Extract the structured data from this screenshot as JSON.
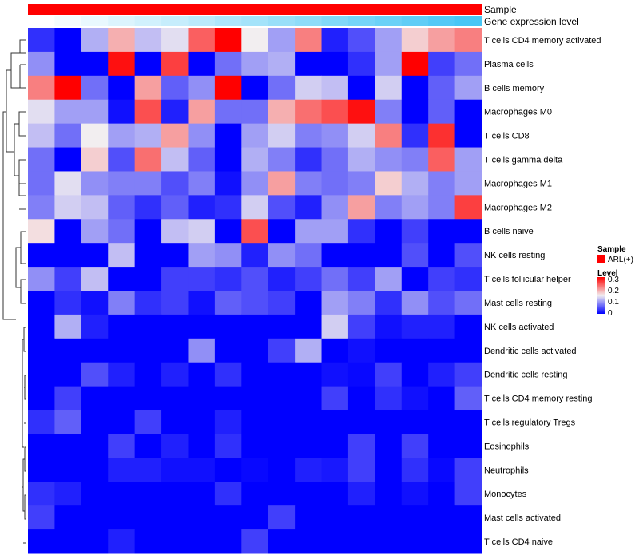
{
  "chart_data": {
    "type": "heatmap",
    "title": "",
    "annotation_rows": [
      {
        "label": "Sample",
        "values": [
          "ARL(+)",
          "ARL(+)",
          "ARL(+)",
          "ARL(+)",
          "ARL(+)",
          "ARL(+)",
          "ARL(+)",
          "ARL(+)",
          "ARL(+)",
          "ARL(+)",
          "ARL(+)",
          "ARL(+)",
          "ARL(+)",
          "ARL(+)",
          "ARL(+)",
          "ARL(+)",
          "ARL(+)"
        ]
      },
      {
        "label": "Gene expression level",
        "values": [
          0,
          0.06,
          0.12,
          0.19,
          0.25,
          0.31,
          0.37,
          0.44,
          0.5,
          0.56,
          0.62,
          0.69,
          0.75,
          0.81,
          0.87,
          0.94,
          1
        ]
      }
    ],
    "rows": [
      "T cells CD4 memory activated",
      "Plasma cells",
      "B cells memory",
      "Macrophages M0",
      "T cells CD8",
      "T cells gamma delta",
      "Macrophages M1",
      "Macrophages M2",
      "B cells naive",
      "NK cells resting",
      "T cells follicular helper",
      "Mast cells resting",
      "NK cells activated",
      "Dendritic cells activated",
      "Dendritic cells resting",
      "T cells CD4 memory resting",
      "T cells regulatory  Tregs",
      "Eosinophils",
      "Neutrophils",
      "Monocytes",
      "Mast cells activated",
      "T cells CD4 naive"
    ],
    "values": [
      [
        0.03,
        0,
        0.11,
        0.19,
        0.12,
        0.14,
        0.24,
        0.3,
        0.15,
        0.1,
        0.22,
        0.02,
        0.05,
        0.1,
        0.17,
        0.2,
        0.22
      ],
      [
        0.09,
        0,
        0,
        0.29,
        0,
        0.26,
        0,
        0.07,
        0.1,
        0.11,
        0,
        0,
        0.03,
        0.1,
        0.3,
        0.04,
        0.07
      ],
      [
        0.22,
        0.3,
        0.07,
        0,
        0.2,
        0.06,
        0.09,
        0.3,
        0,
        0.07,
        0.13,
        0.12,
        0,
        0.13,
        0,
        0.06,
        0.1
      ],
      [
        0.14,
        0.1,
        0.1,
        0.01,
        0.25,
        0.02,
        0.2,
        0.07,
        0.07,
        0.19,
        0.23,
        0.25,
        0.29,
        0.08,
        0,
        0.06,
        0
      ],
      [
        0.12,
        0.07,
        0.15,
        0.1,
        0.11,
        0.2,
        0.09,
        0,
        0.1,
        0.13,
        0.08,
        0.09,
        0.13,
        0.22,
        0.03,
        0.27,
        0
      ],
      [
        0.07,
        0,
        0.17,
        0.05,
        0.23,
        0.12,
        0.06,
        0,
        0.11,
        0.08,
        0.03,
        0.07,
        0.11,
        0.09,
        0.08,
        0.24,
        0.1
      ],
      [
        0.07,
        0.14,
        0.09,
        0.08,
        0.08,
        0.05,
        0.08,
        0.01,
        0.09,
        0.2,
        0.08,
        0.07,
        0.08,
        0.17,
        0.11,
        0.08,
        0.1
      ],
      [
        0.08,
        0.13,
        0.12,
        0.06,
        0.03,
        0.06,
        0.02,
        0.03,
        0.13,
        0.05,
        0.02,
        0.09,
        0.2,
        0.08,
        0.1,
        0.08,
        0.26
      ],
      [
        0.16,
        0,
        0.1,
        0.07,
        0,
        0.12,
        0.13,
        0,
        0.25,
        0,
        0.1,
        0.1,
        0.03,
        0,
        0.04,
        0,
        0
      ],
      [
        0,
        0,
        0,
        0.12,
        0,
        0,
        0.1,
        0.09,
        0.02,
        0.09,
        0.07,
        0,
        0,
        0,
        0.05,
        0,
        0.05
      ],
      [
        0.09,
        0.04,
        0.12,
        0,
        0,
        0.04,
        0.04,
        0.03,
        0.05,
        0.02,
        0.04,
        0.07,
        0.04,
        0.1,
        0,
        0.04,
        0.03
      ],
      [
        0,
        0.03,
        0.01,
        0.08,
        0.03,
        0.04,
        0.01,
        0.06,
        0.05,
        0.04,
        0,
        0.1,
        0.08,
        0.03,
        0.09,
        0.05,
        0.07
      ],
      [
        0,
        0.11,
        0.02,
        0,
        0,
        0,
        0,
        0,
        0,
        0,
        0,
        0.13,
        0.04,
        0.01,
        0.02,
        0.02,
        0
      ],
      [
        0,
        0,
        0,
        0,
        0,
        0,
        0.09,
        0,
        0,
        0.04,
        0.11,
        0,
        0.01,
        0,
        0,
        0,
        0
      ],
      [
        0,
        0,
        0.05,
        0.02,
        0,
        0.02,
        0,
        0.03,
        0,
        0,
        0,
        0.01,
        0.005,
        0.04,
        0,
        0.02,
        0.04
      ],
      [
        0,
        0.04,
        0,
        0,
        0,
        0,
        0,
        0,
        0,
        0,
        0,
        0.04,
        0,
        0.03,
        0.01,
        0,
        0.06
      ],
      [
        0.03,
        0.06,
        0,
        0,
        0.04,
        0,
        0,
        0.02,
        0,
        0,
        0,
        0,
        0,
        0,
        0,
        0,
        0
      ],
      [
        0,
        0,
        0,
        0.04,
        0,
        0.02,
        0,
        0.03,
        0,
        0,
        0,
        0,
        0.04,
        0,
        0.04,
        0,
        0
      ],
      [
        0,
        0,
        0,
        0.02,
        0.02,
        0.01,
        0.01,
        0,
        0.005,
        0,
        0.02,
        0.015,
        0.04,
        0,
        0.03,
        0.005,
        0.04
      ],
      [
        0.03,
        0.02,
        0,
        0,
        0,
        0,
        0,
        0.03,
        0,
        0,
        0,
        0,
        0.02,
        0,
        0.01,
        0,
        0.04
      ],
      [
        0.04,
        0,
        0,
        0,
        0,
        0,
        0,
        0,
        0,
        0.04,
        0,
        0,
        0,
        0,
        0,
        0,
        0
      ],
      [
        0,
        0,
        0,
        0.02,
        0,
        0,
        0,
        0,
        0.04,
        0,
        0,
        0,
        0,
        0,
        0,
        0,
        0
      ]
    ],
    "color_scale": {
      "low": "#0000ff",
      "mid": "#f2eef0",
      "high": "#ff0000",
      "range": [
        0,
        0.3
      ]
    },
    "legend": {
      "placement": "right",
      "sample_title": "Sample",
      "sample_entry": "ARL(+)",
      "sample_color": "#ff0000",
      "level_title": "Level",
      "level_ticks": [
        "0.3",
        "0.2",
        "0.1",
        "0"
      ]
    },
    "gene_colors": {
      "low": "#ffffff",
      "high": "#48c6f5"
    }
  }
}
